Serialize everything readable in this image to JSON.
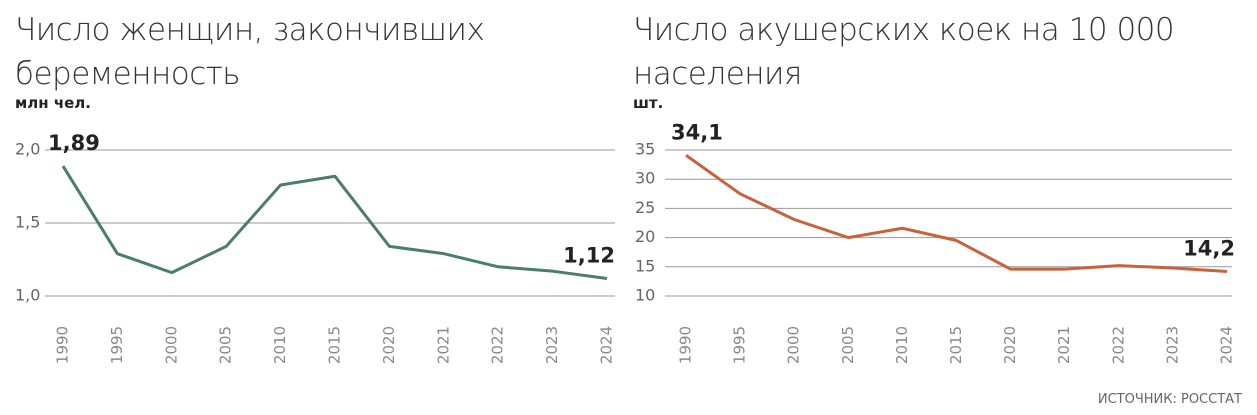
{
  "chart_data": [
    {
      "type": "line",
      "title": "Число женщин, закончивших беременность",
      "y_label": "млн чел.",
      "categories": [
        "1990",
        "1995",
        "2000",
        "2005",
        "2010",
        "2015",
        "2020",
        "2021",
        "2022",
        "2023",
        "2024"
      ],
      "series": [
        {
          "name": null,
          "color": "#4a7d6e",
          "values": [
            1.89,
            1.29,
            1.16,
            1.34,
            1.76,
            1.82,
            1.34,
            1.29,
            1.2,
            1.17,
            1.12
          ],
          "value_labels": [
            "1,89",
            null,
            null,
            null,
            null,
            null,
            null,
            null,
            null,
            null,
            "1,12"
          ]
        }
      ],
      "ylim": [
        1.0,
        2.0
      ],
      "yticks": [
        {
          "value": 1.0,
          "label": "1,0"
        },
        {
          "value": 1.5,
          "label": "1,5"
        },
        {
          "value": 2.0,
          "label": "2,0"
        }
      ],
      "grid": true
    },
    {
      "type": "line",
      "title": "Число акушерских коек на 10 000 населения",
      "y_label": "шт.",
      "categories": [
        "1990",
        "1995",
        "2000",
        "2005",
        "2010",
        "2015",
        "2020",
        "2021",
        "2022",
        "2023",
        "2024"
      ],
      "series": [
        {
          "name": null,
          "color": "#c8623a",
          "values": [
            34.1,
            27.5,
            23.1,
            20,
            21.6,
            19.5,
            14.6,
            14.6,
            15.2,
            14.8,
            14.2
          ],
          "value_labels": [
            "34,1",
            null,
            null,
            null,
            null,
            null,
            null,
            null,
            null,
            null,
            "14,2"
          ]
        }
      ],
      "ylim": [
        10,
        35
      ],
      "yticks": [
        10,
        15,
        20,
        25,
        30,
        35
      ],
      "grid": true
    }
  ],
  "source": "ИСТОЧНИК: РОССТАТ"
}
